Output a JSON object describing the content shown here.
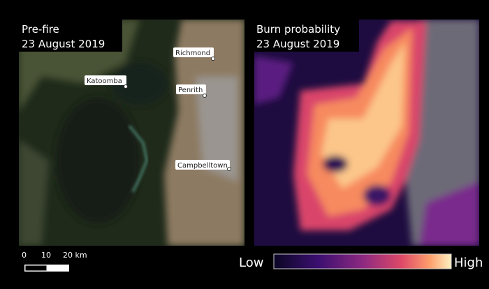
{
  "panels": [
    {
      "title": [
        "Pre-fire",
        "23 August 2019"
      ],
      "places": [
        "Richmond",
        "Katoomba",
        "Penrith",
        "Campbelltown"
      ]
    },
    {
      "title": [
        "Burn probability",
        "23 August 2019"
      ]
    }
  ],
  "scale_bar": {
    "labels": [
      "0",
      "10",
      "20 km"
    ]
  },
  "colorbar": {
    "low": "Low",
    "high": "High"
  }
}
